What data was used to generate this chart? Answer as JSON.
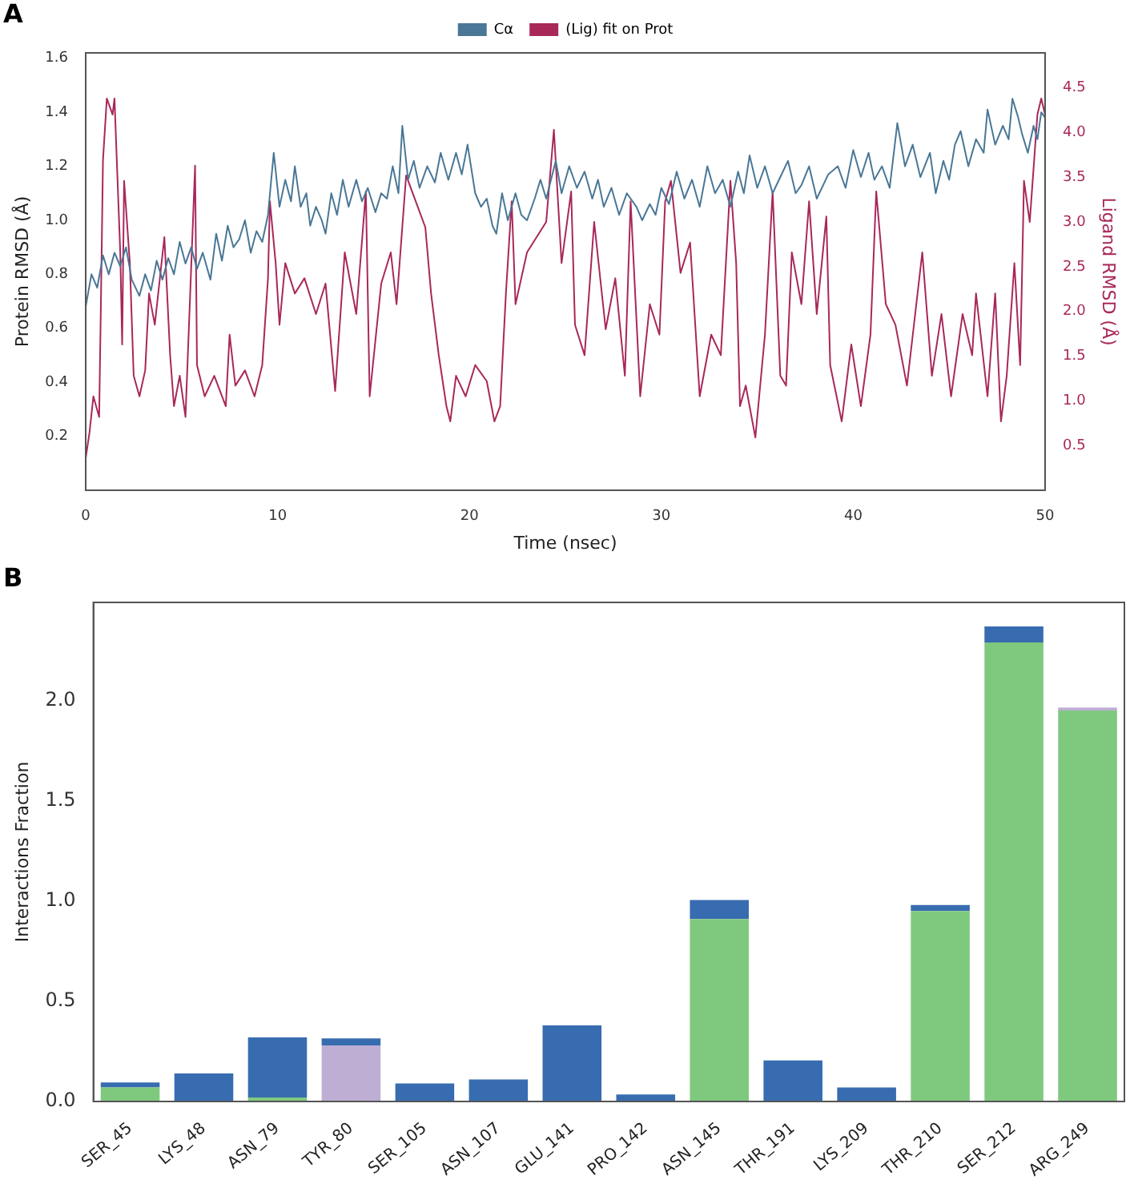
{
  "chart_data": [
    {
      "type": "line",
      "annotations": [
        "A"
      ],
      "xlabel": "Time (nsec)",
      "ylabel": "Protein RMSD (Å)",
      "y2label": "Ligand RMSD (Å)",
      "legend": "top",
      "grid": false,
      "marker": "none",
      "line_style": "solid",
      "xlim": [
        0,
        50
      ],
      "xticks": [
        0,
        10,
        20,
        30,
        40,
        50
      ],
      "ylim": [
        0,
        1.62
      ],
      "yticks": [
        0.2,
        0.4,
        0.6,
        0.8,
        {
          "value": 1.0,
          "label": "1.0"
        },
        1.2,
        1.4,
        1.6
      ],
      "y2lim": [
        0,
        4.89
      ],
      "y2ticks": [
        0.5,
        {
          "value": 1.0,
          "label": "1.0"
        },
        1.5,
        {
          "value": 2.0,
          "label": "2.0"
        },
        2.5,
        {
          "value": 3.0,
          "label": "3.0"
        },
        3.5,
        {
          "value": 4.0,
          "label": "4.0"
        },
        4.5
      ],
      "series": [
        {
          "name": "Cα",
          "color": "#4a7796",
          "x": [
            0,
            0.3,
            0.6,
            0.9,
            1.2,
            1.5,
            1.8,
            2.1,
            2.4,
            2.8,
            3.1,
            3.4,
            3.7,
            4.0,
            4.3,
            4.6,
            4.9,
            5.2,
            5.5,
            5.8,
            6.1,
            6.5,
            6.8,
            7.1,
            7.4,
            7.7,
            8.0,
            8.3,
            8.6,
            8.9,
            9.2,
            9.5,
            9.8,
            10.1,
            10.4,
            10.7,
            10.9,
            11.2,
            11.5,
            11.7,
            12.0,
            12.3,
            12.5,
            12.8,
            13.1,
            13.4,
            13.7,
            14.1,
            14.4,
            14.7,
            15.1,
            15.4,
            15.7,
            16.0,
            16.3,
            16.5,
            16.8,
            17.1,
            17.4,
            17.8,
            18.2,
            18.5,
            18.9,
            19.3,
            19.6,
            19.9,
            20.3,
            20.6,
            20.9,
            21.2,
            21.4,
            21.7,
            22.0,
            22.4,
            22.7,
            23.0,
            23.4,
            23.7,
            24.0,
            24.5,
            24.8,
            25.2,
            25.6,
            26.0,
            26.4,
            26.7,
            27.0,
            27.4,
            27.8,
            28.2,
            28.7,
            29.0,
            29.4,
            29.7,
            30.0,
            30.4,
            30.8,
            31.2,
            31.6,
            32.0,
            32.4,
            32.8,
            33.2,
            33.6,
            34.0,
            34.3,
            34.6,
            35.0,
            35.4,
            35.8,
            36.2,
            36.6,
            37.0,
            37.3,
            37.7,
            38.1,
            38.7,
            39.2,
            39.6,
            40.0,
            40.4,
            40.8,
            41.1,
            41.5,
            41.9,
            42.3,
            42.7,
            43.1,
            43.5,
            44.0,
            44.3,
            44.7,
            45.0,
            45.3,
            45.6,
            46.0,
            46.4,
            46.8,
            47.0,
            47.4,
            47.8,
            48.1,
            48.3,
            48.6,
            48.8,
            49.1,
            49.4,
            49.6,
            49.8,
            50.0
          ],
          "values": [
            0.68,
            0.8,
            0.75,
            0.87,
            0.8,
            0.88,
            0.83,
            0.9,
            0.78,
            0.72,
            0.8,
            0.74,
            0.85,
            0.78,
            0.86,
            0.8,
            0.92,
            0.84,
            0.9,
            0.82,
            0.88,
            0.78,
            0.95,
            0.85,
            0.98,
            0.9,
            0.93,
            1.0,
            0.88,
            0.96,
            0.92,
            1.02,
            1.25,
            1.05,
            1.15,
            1.07,
            1.2,
            1.05,
            1.1,
            0.98,
            1.05,
            1.0,
            0.95,
            1.1,
            1.02,
            1.15,
            1.05,
            1.15,
            1.07,
            1.12,
            1.03,
            1.1,
            1.08,
            1.2,
            1.1,
            1.35,
            1.15,
            1.22,
            1.12,
            1.2,
            1.14,
            1.25,
            1.15,
            1.25,
            1.17,
            1.28,
            1.1,
            1.05,
            1.08,
            0.98,
            0.95,
            1.1,
            1.0,
            1.1,
            1.02,
            1.0,
            1.08,
            1.15,
            1.08,
            1.22,
            1.1,
            1.2,
            1.12,
            1.18,
            1.08,
            1.15,
            1.05,
            1.12,
            1.02,
            1.1,
            1.05,
            1.0,
            1.06,
            1.02,
            1.12,
            1.06,
            1.18,
            1.08,
            1.15,
            1.05,
            1.2,
            1.1,
            1.15,
            1.05,
            1.18,
            1.1,
            1.24,
            1.12,
            1.2,
            1.1,
            1.16,
            1.22,
            1.1,
            1.13,
            1.2,
            1.08,
            1.17,
            1.2,
            1.12,
            1.26,
            1.16,
            1.25,
            1.15,
            1.2,
            1.12,
            1.36,
            1.2,
            1.28,
            1.16,
            1.25,
            1.1,
            1.22,
            1.15,
            1.28,
            1.33,
            1.2,
            1.3,
            1.25,
            1.41,
            1.28,
            1.35,
            1.3,
            1.45,
            1.38,
            1.32,
            1.25,
            1.35,
            1.3,
            1.4,
            1.38
          ]
        },
        {
          "name": "(Lig) fit on Prot",
          "color": "#a8285a",
          "axis": "y2",
          "x": [
            0,
            0.2,
            0.4,
            0.7,
            0.8,
            0.9,
            1.1,
            1.4,
            1.5,
            1.8,
            1.9,
            2.0,
            2.3,
            2.5,
            2.8,
            3.1,
            3.3,
            3.6,
            4.1,
            4.4,
            4.6,
            4.9,
            5.2,
            5.7,
            5.8,
            6.2,
            6.7,
            7.3,
            7.5,
            7.8,
            8.3,
            8.8,
            9.2,
            9.5,
            9.6,
            9.9,
            10.1,
            10.4,
            10.9,
            11.4,
            12.0,
            12.5,
            13.0,
            13.5,
            14.1,
            14.6,
            14.8,
            15.4,
            15.9,
            16.2,
            16.7,
            17.2,
            17.7,
            18.0,
            18.4,
            18.8,
            19.0,
            19.3,
            19.8,
            20.3,
            20.9,
            21.3,
            21.6,
            21.9,
            22.2,
            22.4,
            23.0,
            24.0,
            24.4,
            24.8,
            25.3,
            25.5,
            26.0,
            26.5,
            27.1,
            27.6,
            28.1,
            28.4,
            28.9,
            29.4,
            29.9,
            30.2,
            30.5,
            31.0,
            31.5,
            32.0,
            32.6,
            33.1,
            33.6,
            33.9,
            34.1,
            34.4,
            34.9,
            35.4,
            35.8,
            36.2,
            36.5,
            36.8,
            37.3,
            37.7,
            38.1,
            38.6,
            38.8,
            39.4,
            39.9,
            40.4,
            40.9,
            41.2,
            41.7,
            42.2,
            42.8,
            43.6,
            44.1,
            44.6,
            45.1,
            45.7,
            46.2,
            46.4,
            47.0,
            47.4,
            47.7,
            48.0,
            48.4,
            48.7,
            48.9,
            49.2,
            49.6,
            49.8,
            50.0
          ],
          "values": [
            0.36,
            0.65,
            1.05,
            0.82,
            2.2,
            3.69,
            4.38,
            4.2,
            4.38,
            2.66,
            1.63,
            3.46,
            2.54,
            1.28,
            1.05,
            1.34,
            2.2,
            1.85,
            2.83,
            1.51,
            0.94,
            1.28,
            0.82,
            3.63,
            1.4,
            1.05,
            1.28,
            0.94,
            1.74,
            1.17,
            1.34,
            1.05,
            1.4,
            2.37,
            3.23,
            2.54,
            1.85,
            2.54,
            2.2,
            2.37,
            1.97,
            2.31,
            1.11,
            2.66,
            1.97,
            3.34,
            1.05,
            2.31,
            2.66,
            2.08,
            3.52,
            3.23,
            2.94,
            2.2,
            1.51,
            0.94,
            0.77,
            1.28,
            1.05,
            1.4,
            1.22,
            0.77,
            0.94,
            2.2,
            3.23,
            2.08,
            2.66,
            3.0,
            4.03,
            2.54,
            3.34,
            1.85,
            1.51,
            3.0,
            1.8,
            2.37,
            1.28,
            3.23,
            1.05,
            2.08,
            1.74,
            3.23,
            3.46,
            2.43,
            2.77,
            1.05,
            1.74,
            1.51,
            3.46,
            2.54,
            0.94,
            1.17,
            0.59,
            1.74,
            3.34,
            1.28,
            1.17,
            2.66,
            2.08,
            3.23,
            1.97,
            3.06,
            1.4,
            0.77,
            1.63,
            0.94,
            1.74,
            3.34,
            2.08,
            1.85,
            1.17,
            2.66,
            1.28,
            1.97,
            1.05,
            1.97,
            1.51,
            2.2,
            1.05,
            2.2,
            0.77,
            1.28,
            2.54,
            1.4,
            3.46,
            3.0,
            4.2,
            4.38,
            4.2
          ]
        }
      ]
    },
    {
      "type": "bar",
      "annotations": [
        "B"
      ],
      "ylabel": "Interactions Fraction",
      "stacked": true,
      "legend": false,
      "grid": false,
      "categories": [
        "SER_45",
        "LYS_48",
        "ASN_79",
        "TYR_80",
        "SER_105",
        "ASN_107",
        "GLU_141",
        "PRO_142",
        "ASN_145",
        "THR_191",
        "LYS_209",
        "THR_210",
        "SER_212",
        "ARG_249"
      ],
      "ylim": [
        0,
        2.49
      ],
      "yticks": [
        {
          "value": 0,
          "label": "0.0"
        },
        0.5,
        {
          "value": 1.0,
          "label": "1.0"
        },
        1.5,
        {
          "value": 2.0,
          "label": "2.0"
        }
      ],
      "series": [
        {
          "color": "#7fc97f",
          "values": [
            0.07,
            0,
            0.02,
            0,
            0,
            0,
            0,
            0,
            0.91,
            0,
            0,
            0.95,
            2.29,
            1.95
          ]
        },
        {
          "color": "#beaed4",
          "values": [
            0,
            0,
            0,
            0.28,
            0,
            0,
            0,
            0,
            0,
            0,
            0,
            0,
            0,
            0.015
          ]
        },
        {
          "color": "#386cb0",
          "values": [
            0.025,
            0.14,
            0.3,
            0.035,
            0.09,
            0.11,
            0.38,
            0.035,
            0.095,
            0.205,
            0.07,
            0.03,
            0.08,
            null
          ]
        }
      ]
    }
  ]
}
